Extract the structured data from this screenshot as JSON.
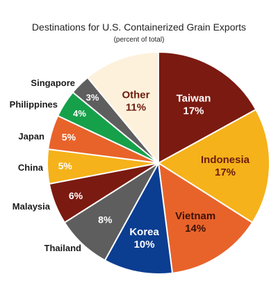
{
  "chart_data": {
    "type": "pie",
    "title": "Destinations for U.S. Containerized Grain Exports",
    "subtitle": "(percent of total)",
    "slices": [
      {
        "name": "Taiwan",
        "value": 17,
        "label": "17%",
        "color": "#7b1a10",
        "text_color": "#ffffff",
        "label_inside": true
      },
      {
        "name": "Indonesia",
        "value": 17,
        "label": "17%",
        "color": "#f5b21a",
        "text_color": "#6b1c0e",
        "label_inside": true
      },
      {
        "name": "Vietnam",
        "value": 14,
        "label": "14%",
        "color": "#e8632a",
        "text_color": "#3a1208",
        "label_inside": true
      },
      {
        "name": "Korea",
        "value": 10,
        "label": "10%",
        "color": "#0b3d91",
        "text_color": "#ffffff",
        "label_inside": true
      },
      {
        "name": "Thailand",
        "value": 8,
        "label": "8%",
        "color": "#5e5e5e",
        "text_color": "#ffffff",
        "label_inside": false
      },
      {
        "name": "Malaysia",
        "value": 6,
        "label": "6%",
        "color": "#7b1a10",
        "text_color": "#ffffff",
        "label_inside": false
      },
      {
        "name": "China",
        "value": 5,
        "label": "5%",
        "color": "#f5b21a",
        "text_color": "#ffffff",
        "label_inside": false
      },
      {
        "name": "Japan",
        "value": 5,
        "label": "5%",
        "color": "#e8632a",
        "text_color": "#ffffff",
        "label_inside": false
      },
      {
        "name": "Philippines",
        "value": 4,
        "label": "4%",
        "color": "#16a04a",
        "text_color": "#ffffff",
        "label_inside": false
      },
      {
        "name": "Singapore",
        "value": 3,
        "label": "3%",
        "color": "#5e5e5e",
        "text_color": "#ffffff",
        "label_inside": false
      },
      {
        "name": "Other",
        "value": 11,
        "label": "11%",
        "color": "#fdf1dc",
        "text_color": "#6b1c0e",
        "label_inside": true
      }
    ]
  }
}
